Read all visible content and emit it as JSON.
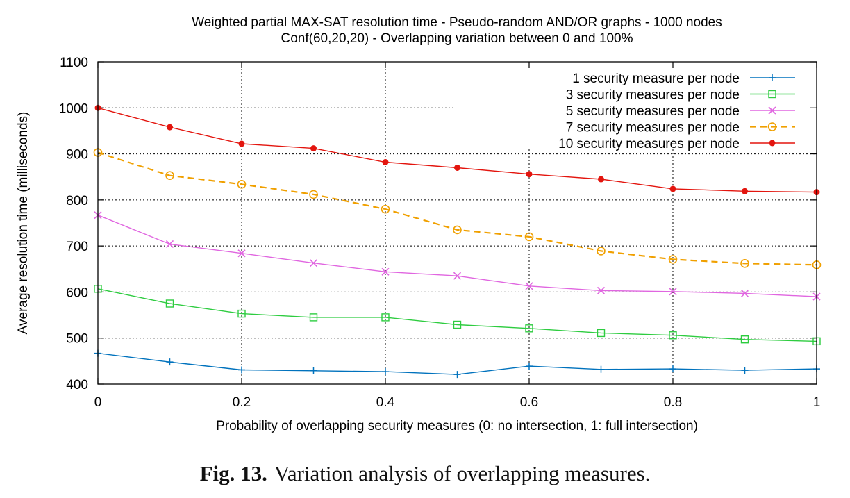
{
  "chart_data": {
    "type": "line",
    "title": "Weighted partial MAX-SAT resolution time - Pseudo-random AND/OR graphs - 1000 nodes",
    "subtitle": "Conf(60,20,20) - Overlapping variation between 0 and 100%",
    "xlabel": "Probability of overlapping security measures (0: no intersection, 1: full intersection)",
    "ylabel": "Average resolution time (milliseconds)",
    "xlim": [
      0,
      1
    ],
    "ylim": [
      400,
      1100
    ],
    "xticks": [
      0,
      0.2,
      0.4,
      0.6,
      0.8,
      1
    ],
    "xtick_labels": [
      "0",
      "0.2",
      "0.4",
      "0.6",
      "0.8",
      "1"
    ],
    "yticks": [
      400,
      500,
      600,
      700,
      800,
      900,
      1000,
      1100
    ],
    "grid": true,
    "legend_position": "top-right",
    "x": [
      0,
      0.1,
      0.2,
      0.3,
      0.4,
      0.5,
      0.6,
      0.7,
      0.8,
      0.9,
      1
    ],
    "series": [
      {
        "name": "1 security measure per node",
        "color": "#0072bd",
        "marker": "plus",
        "dash": false,
        "values": [
          467,
          448,
          431,
          429,
          427,
          421,
          439,
          432,
          433,
          430,
          433
        ]
      },
      {
        "name": "3 security measures per node",
        "color": "#2ecc40",
        "marker": "square",
        "dash": false,
        "values": [
          607,
          575,
          553,
          545,
          545,
          529,
          521,
          511,
          506,
          497,
          493
        ]
      },
      {
        "name": "5 security measures per node",
        "color": "#e066e0",
        "marker": "x",
        "dash": false,
        "values": [
          767,
          704,
          684,
          663,
          644,
          635,
          613,
          603,
          601,
          597,
          590
        ]
      },
      {
        "name": "7 security measures per node",
        "color": "#f0a000",
        "marker": "circle",
        "dash": true,
        "values": [
          903,
          853,
          834,
          812,
          780,
          735,
          720,
          689,
          671,
          662,
          659
        ]
      },
      {
        "name": "10 security measures per node",
        "color": "#e3150e",
        "marker": "dot",
        "dash": false,
        "values": [
          1000,
          958,
          922,
          912,
          882,
          870,
          856,
          845,
          824,
          819,
          817
        ]
      }
    ]
  },
  "caption": {
    "label": "Fig. 13.",
    "text": "Variation analysis of overlapping measures."
  }
}
